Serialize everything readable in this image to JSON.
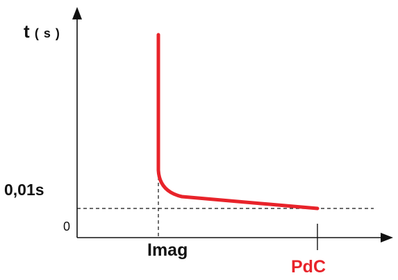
{
  "diagram": {
    "y_axis_label": "t",
    "y_axis_unit": "( s )",
    "y_reference_label": "0,01s",
    "origin_label": "0",
    "x_marker_imag": "Imag",
    "x_marker_pdc": "PdC",
    "colors": {
      "curve": "#e8232a",
      "pdc_label": "#e8232a",
      "axes": "#111111"
    }
  }
}
